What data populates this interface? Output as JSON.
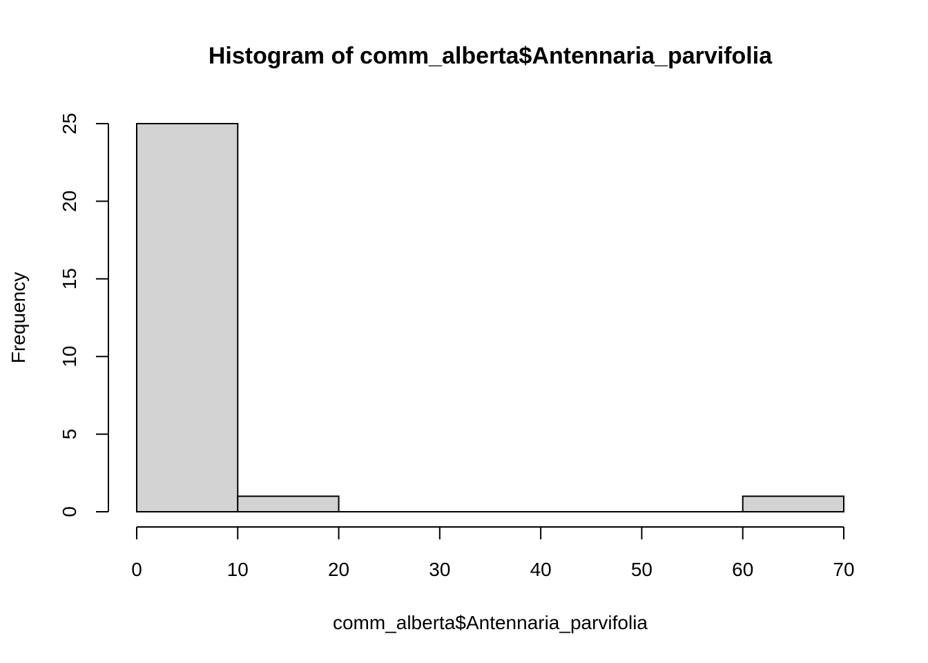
{
  "chart_data": {
    "type": "bar",
    "title": "Histogram of comm_alberta$Antennaria_parvifolia",
    "xlabel": "comm_alberta$Antennaria_parvifolia",
    "ylabel": "Frequency",
    "bins": [
      {
        "from": 0,
        "to": 10,
        "count": 25
      },
      {
        "from": 10,
        "to": 20,
        "count": 1
      },
      {
        "from": 20,
        "to": 30,
        "count": 0
      },
      {
        "from": 30,
        "to": 40,
        "count": 0
      },
      {
        "from": 40,
        "to": 50,
        "count": 0
      },
      {
        "from": 50,
        "to": 60,
        "count": 0
      },
      {
        "from": 60,
        "to": 70,
        "count": 1
      }
    ],
    "xlim": [
      0,
      70
    ],
    "ylim": [
      0,
      25
    ],
    "x_ticks": [
      0,
      10,
      20,
      30,
      40,
      50,
      60,
      70
    ],
    "x_tick_labels": [
      "0",
      "10",
      "20",
      "30",
      "40",
      "50",
      "60",
      "70"
    ],
    "y_ticks": [
      0,
      5,
      10,
      15,
      20,
      25
    ],
    "y_tick_labels": [
      "0",
      "5",
      "10",
      "15",
      "20",
      "25"
    ],
    "grid": false,
    "bar_fill": "#d3d3d3",
    "bar_stroke": "#000000"
  }
}
